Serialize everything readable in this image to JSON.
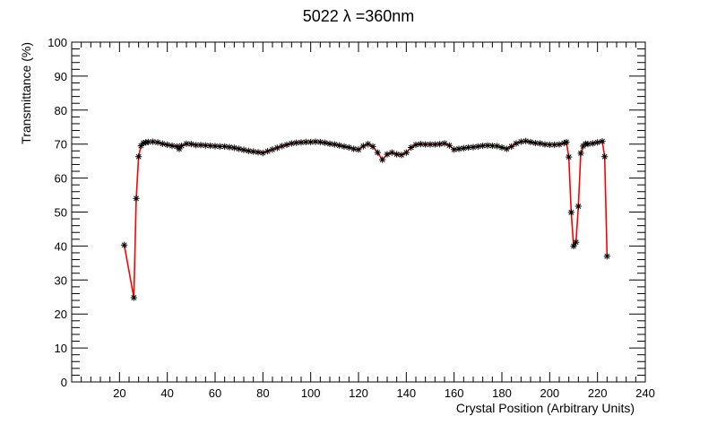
{
  "chart_data": {
    "type": "line",
    "title": "5022 λ =360nm",
    "xlabel": "Crystal Position (Arbitrary Units)",
    "ylabel": "Transmittance (%)",
    "xlim": [
      0,
      240
    ],
    "ylim": [
      0,
      100
    ],
    "x_ticks": [
      20,
      40,
      60,
      80,
      100,
      120,
      140,
      160,
      180,
      200,
      220,
      240
    ],
    "y_ticks": [
      0,
      10,
      20,
      30,
      40,
      50,
      60,
      70,
      80,
      90,
      100
    ],
    "grid": false,
    "line_color": "#ff0000",
    "marker": "asterisk",
    "marker_color": "#000000",
    "series": [
      {
        "x": [
          22,
          26,
          27,
          28,
          29,
          30,
          31,
          32,
          34,
          36,
          38,
          40,
          42,
          44,
          45,
          46,
          48,
          50,
          52,
          54,
          56,
          58,
          60,
          62,
          64,
          66,
          68,
          70,
          72,
          74,
          76,
          78,
          80,
          82,
          84,
          86,
          88,
          90,
          92,
          94,
          96,
          98,
          100,
          102,
          104,
          106,
          108,
          110,
          112,
          114,
          116,
          118,
          120,
          122,
          124,
          126,
          128,
          130,
          132,
          134,
          136,
          138,
          140,
          142,
          144,
          146,
          148,
          150,
          152,
          154,
          156,
          158,
          160,
          162,
          164,
          166,
          168,
          170,
          172,
          174,
          176,
          178,
          180,
          182,
          184,
          186,
          188,
          190,
          192,
          194,
          196,
          198,
          200,
          202,
          204,
          206,
          207,
          208,
          209,
          210,
          211,
          212,
          213,
          214,
          215,
          216,
          218,
          220,
          222,
          223,
          224
        ],
        "y": [
          40.3,
          24.8,
          54.0,
          66.3,
          69.5,
          70.3,
          70.5,
          70.6,
          70.7,
          70.5,
          70.1,
          69.8,
          69.5,
          69.3,
          68.6,
          69.5,
          70.1,
          70.0,
          69.7,
          69.7,
          69.6,
          69.5,
          69.4,
          69.3,
          69.3,
          69.1,
          68.9,
          68.6,
          68.3,
          68.0,
          67.8,
          67.6,
          67.4,
          67.9,
          68.4,
          68.9,
          69.4,
          69.8,
          70.2,
          70.4,
          70.5,
          70.6,
          70.6,
          70.7,
          70.6,
          70.4,
          70.1,
          69.9,
          69.6,
          69.3,
          69.0,
          68.6,
          68.4,
          69.4,
          70.0,
          69.3,
          67.5,
          65.4,
          67.0,
          67.5,
          67.0,
          66.8,
          67.5,
          69.0,
          69.8,
          70.0,
          69.9,
          69.9,
          69.9,
          70.0,
          70.2,
          69.6,
          68.4,
          68.6,
          68.8,
          69.0,
          69.1,
          69.3,
          69.5,
          69.6,
          69.5,
          69.4,
          69.0,
          68.6,
          69.3,
          70.2,
          70.7,
          70.9,
          70.6,
          70.3,
          70.2,
          69.9,
          69.8,
          69.8,
          69.9,
          70.3,
          70.6,
          66.2,
          49.9,
          40.0,
          41.1,
          51.7,
          67.3,
          69.4,
          70.1,
          70.0,
          70.2,
          70.5,
          70.8,
          66.3,
          37.0
        ]
      }
    ]
  }
}
